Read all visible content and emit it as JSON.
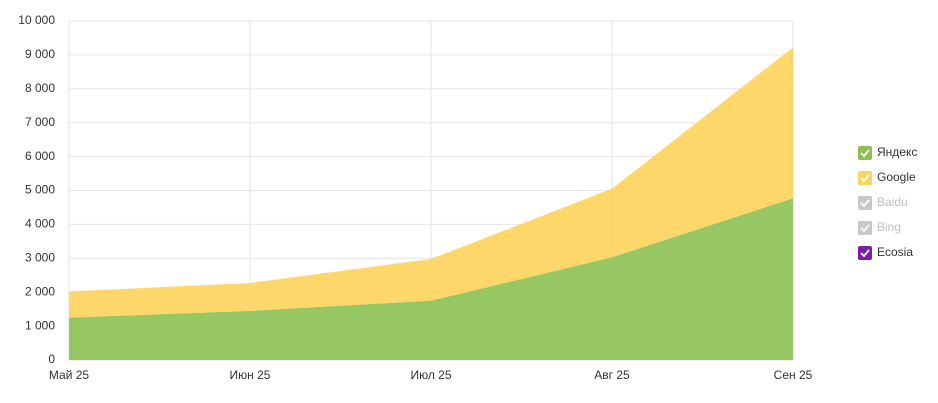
{
  "chart_data": {
    "type": "stacked_area",
    "categories": [
      "Май 25",
      "Июн 25",
      "Июл 25",
      "Авг 25",
      "Сен 25"
    ],
    "series": [
      {
        "name": "Яндекс",
        "color": "#8cc152",
        "visible": true,
        "values": [
          1250,
          1450,
          1750,
          3030,
          4770
        ]
      },
      {
        "name": "Google",
        "color": "#fdd35a",
        "visible": true,
        "values": [
          770,
          820,
          1230,
          2020,
          4450
        ]
      },
      {
        "name": "Baidu",
        "color": "#c8c8c8",
        "visible": false,
        "values": [
          null,
          null,
          null,
          null,
          null
        ]
      },
      {
        "name": "Bing",
        "color": "#c8c8c8",
        "visible": false,
        "values": [
          null,
          null,
          null,
          null,
          null
        ]
      },
      {
        "name": "Ecosia",
        "color": "#7b1fa2",
        "visible": true,
        "values": [
          0,
          0,
          0,
          0,
          0
        ]
      }
    ],
    "ylim": [
      0,
      10000
    ],
    "yticks": [
      0,
      {
        "value": 1000,
        "label": "1 000"
      },
      {
        "value": 2000,
        "label": "2 000"
      },
      {
        "value": 3000,
        "label": "3 000"
      },
      {
        "value": 4000,
        "label": "4 000"
      },
      {
        "value": 5000,
        "label": "5 000"
      },
      {
        "value": 6000,
        "label": "6 000"
      },
      {
        "value": 7000,
        "label": "7 000"
      },
      {
        "value": 8000,
        "label": "8 000"
      },
      {
        "value": 9000,
        "label": "9 000"
      },
      {
        "value": 10000,
        "label": "10 000"
      }
    ],
    "grid": true,
    "legend": "right"
  }
}
